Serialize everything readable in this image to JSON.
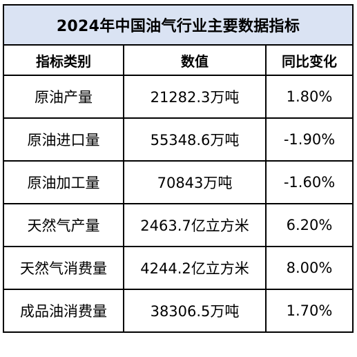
{
  "title": "2024年中国油气行业主要数据指标",
  "headers": [
    "指标类别",
    "数值",
    "同比变化"
  ],
  "rows": [
    {
      "category": "原油产量",
      "value": "21282.3万吨",
      "change": "1.80%"
    },
    {
      "category": "原油进口量",
      "value": "55348.6万吨",
      "change": "-1.90%"
    },
    {
      "category": "原油加工量",
      "value": "70843万吨",
      "change": "-1.60%"
    },
    {
      "category": "天然气产量",
      "value": "2463.7亿立方米",
      "change": "6.20%"
    },
    {
      "category": "天然气消费量",
      "value": "4244.2亿立方米",
      "change": "8.00%"
    },
    {
      "category": "成品油消费量",
      "value": "38306.5万吨",
      "change": "1.70%"
    }
  ],
  "colors": {
    "title_background": "#dae3f3",
    "border": "#000000",
    "text": "#000000"
  }
}
